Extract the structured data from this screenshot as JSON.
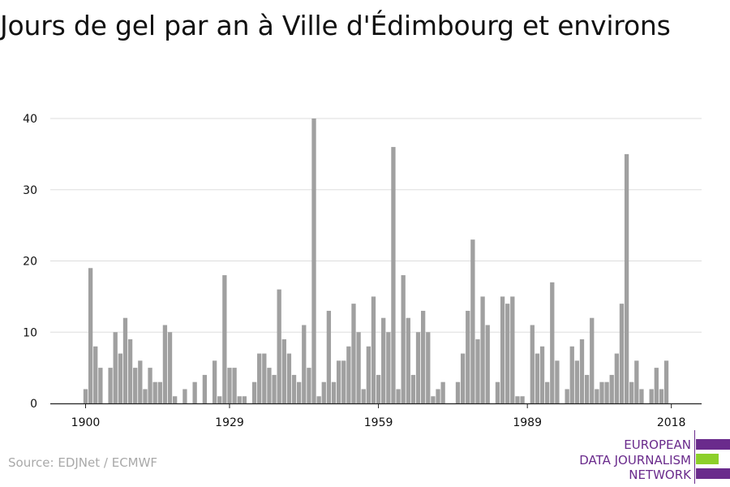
{
  "title": "Jours de gel par an à Ville d'Édimbourg et environs",
  "source": "Source: EDJNet / ECMWF",
  "logo": {
    "lines": [
      "EUROPEAN",
      "DATA JOURNALISM",
      "NETWORK"
    ],
    "colors": {
      "purple": "#6a2b8c",
      "green": "#8ccf2a"
    }
  },
  "colors": {
    "bar": "#a0a0a0",
    "grid": "#dddddd",
    "axis": "#222222"
  },
  "chart_data": {
    "type": "bar",
    "xlabel": "",
    "ylabel": "",
    "ylim": [
      0,
      40
    ],
    "yticks": [
      0,
      10,
      20,
      30,
      40
    ],
    "xticks": [
      1900,
      1929,
      1959,
      1989,
      2018
    ],
    "grid": true,
    "x": [
      1900,
      1901,
      1902,
      1903,
      1904,
      1905,
      1906,
      1907,
      1908,
      1909,
      1910,
      1911,
      1912,
      1913,
      1914,
      1915,
      1916,
      1917,
      1918,
      1919,
      1920,
      1921,
      1922,
      1923,
      1924,
      1925,
      1926,
      1927,
      1928,
      1929,
      1930,
      1931,
      1932,
      1933,
      1934,
      1935,
      1936,
      1937,
      1938,
      1939,
      1940,
      1941,
      1942,
      1943,
      1944,
      1945,
      1946,
      1947,
      1948,
      1949,
      1950,
      1951,
      1952,
      1953,
      1954,
      1955,
      1956,
      1957,
      1958,
      1959,
      1960,
      1961,
      1962,
      1963,
      1964,
      1965,
      1966,
      1967,
      1968,
      1969,
      1970,
      1971,
      1972,
      1973,
      1974,
      1975,
      1976,
      1977,
      1978,
      1979,
      1980,
      1981,
      1982,
      1983,
      1984,
      1985,
      1986,
      1987,
      1988,
      1989,
      1990,
      1991,
      1992,
      1993,
      1994,
      1995,
      1996,
      1997,
      1998,
      1999,
      2000,
      2001,
      2002,
      2003,
      2004,
      2005,
      2006,
      2007,
      2008,
      2009,
      2010,
      2011,
      2012,
      2013,
      2014,
      2015,
      2016,
      2017,
      2018
    ],
    "values": [
      2,
      19,
      8,
      5,
      0,
      5,
      10,
      7,
      12,
      9,
      5,
      6,
      2,
      5,
      3,
      3,
      11,
      10,
      1,
      0,
      2,
      0,
      3,
      0,
      4,
      0,
      6,
      1,
      18,
      5,
      5,
      1,
      1,
      0,
      3,
      7,
      7,
      5,
      4,
      16,
      9,
      7,
      4,
      3,
      11,
      5,
      40,
      1,
      3,
      13,
      3,
      6,
      6,
      8,
      14,
      10,
      2,
      8,
      15,
      4,
      12,
      10,
      36,
      2,
      18,
      12,
      4,
      10,
      13,
      10,
      1,
      2,
      3,
      0,
      0,
      3,
      7,
      13,
      23,
      9,
      15,
      11,
      0,
      3,
      15,
      14,
      15,
      1,
      1,
      0,
      11,
      7,
      8,
      3,
      17,
      6,
      0,
      2,
      8,
      6,
      9,
      4,
      12,
      2,
      3,
      3,
      4,
      7,
      14,
      35,
      3,
      6,
      2,
      0,
      2,
      5,
      2,
      6,
      0
    ]
  }
}
